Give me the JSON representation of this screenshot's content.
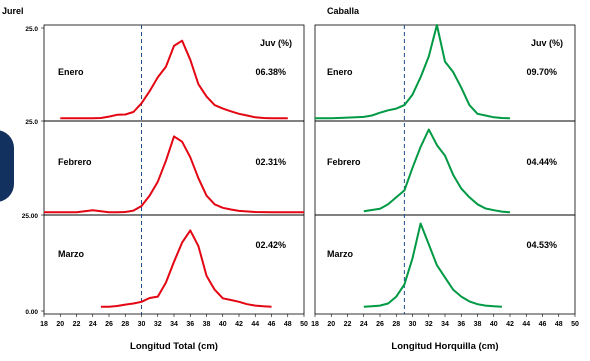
{
  "page": {
    "top_left_title": "Jurel",
    "top_right_title": "Caballa"
  },
  "colors": {
    "jurel_line": "#e30613",
    "caballa_line": "#009944",
    "cutoff_line": "#1f4e8c",
    "frame": "#000000",
    "disc": "#12315e"
  },
  "chart_data": [
    {
      "type": "line",
      "species": "Jurel",
      "xlabel": "Longitud Total (cm)",
      "ylabel": "",
      "x_ticks": [
        18,
        20,
        22,
        24,
        26,
        28,
        30,
        32,
        34,
        36,
        38,
        40,
        42,
        44,
        46,
        48,
        50
      ],
      "xlim": [
        18,
        50
      ],
      "ylim": [
        0,
        25
      ],
      "y_tick_labels": [
        "25.0",
        "25.0",
        "25.00",
        "0.00"
      ],
      "cutoff_cm": 30,
      "header_label": "Juv (%)",
      "grid": false,
      "panels": [
        {
          "month": "Enero",
          "juv_pct": "06.38%",
          "points": [
            [
              20,
              0.2
            ],
            [
              22,
              0.2
            ],
            [
              24,
              0.2
            ],
            [
              25,
              0.3
            ],
            [
              26,
              0.7
            ],
            [
              27,
              1.2
            ],
            [
              28,
              1.3
            ],
            [
              29,
              2.0
            ],
            [
              30,
              4.5
            ],
            [
              31,
              8.0
            ],
            [
              32,
              12.0
            ],
            [
              33,
              15.0
            ],
            [
              34,
              21.0
            ],
            [
              35,
              22.5
            ],
            [
              36,
              17.0
            ],
            [
              37,
              10.0
            ],
            [
              38,
              6.5
            ],
            [
              39,
              4.0
            ],
            [
              40,
              3.0
            ],
            [
              41,
              2.2
            ],
            [
              42,
              1.5
            ],
            [
              43,
              1.0
            ],
            [
              44,
              0.5
            ],
            [
              45,
              0.3
            ],
            [
              46,
              0.2
            ],
            [
              47,
              0.2
            ],
            [
              48,
              0.2
            ]
          ]
        },
        {
          "month": "Febrero",
          "juv_pct": "02.31%",
          "points": [
            [
              18,
              0.2
            ],
            [
              20,
              0.2
            ],
            [
              22,
              0.2
            ],
            [
              23,
              0.5
            ],
            [
              24,
              0.8
            ],
            [
              25,
              0.5
            ],
            [
              26,
              0.2
            ],
            [
              27,
              0.2
            ],
            [
              28,
              0.3
            ],
            [
              29,
              0.7
            ],
            [
              30,
              2.0
            ],
            [
              31,
              5.0
            ],
            [
              32,
              9.0
            ],
            [
              33,
              15.0
            ],
            [
              34,
              22.0
            ],
            [
              35,
              20.5
            ],
            [
              36,
              16.0
            ],
            [
              37,
              10.0
            ],
            [
              38,
              5.0
            ],
            [
              39,
              2.5
            ],
            [
              40,
              1.5
            ],
            [
              41,
              1.0
            ],
            [
              42,
              0.6
            ],
            [
              44,
              0.3
            ],
            [
              46,
              0.2
            ],
            [
              50,
              0.2
            ]
          ]
        },
        {
          "month": "Marzo",
          "juv_pct": "02.42%",
          "points": [
            [
              25,
              0.1
            ],
            [
              26,
              0.1
            ],
            [
              27,
              0.3
            ],
            [
              28,
              0.7
            ],
            [
              29,
              1.0
            ],
            [
              30,
              1.5
            ],
            [
              31,
              2.6
            ],
            [
              32,
              3.0
            ],
            [
              33,
              7.0
            ],
            [
              34,
              13.0
            ],
            [
              35,
              18.5
            ],
            [
              36,
              22.0
            ],
            [
              37,
              17.5
            ],
            [
              38,
              9.0
            ],
            [
              39,
              5.0
            ],
            [
              40,
              2.5
            ],
            [
              41,
              2.0
            ],
            [
              42,
              1.5
            ],
            [
              43,
              0.8
            ],
            [
              44,
              0.4
            ],
            [
              45,
              0.2
            ],
            [
              46,
              0.1
            ]
          ]
        }
      ]
    },
    {
      "type": "line",
      "species": "Caballa",
      "xlabel": "Longitud Horquilla (cm)",
      "ylabel": "",
      "x_ticks": [
        18,
        20,
        22,
        24,
        26,
        28,
        30,
        32,
        34,
        36,
        38,
        40,
        42,
        44,
        46,
        48,
        50
      ],
      "xlim": [
        18,
        50
      ],
      "ylim": [
        0,
        25
      ],
      "cutoff_cm": 29,
      "header_label": "Juv (%)",
      "grid": false,
      "panels": [
        {
          "month": "Enero",
          "juv_pct": "09.70%",
          "points": [
            [
              18,
              0.2
            ],
            [
              20,
              0.2
            ],
            [
              22,
              0.4
            ],
            [
              24,
              0.6
            ],
            [
              25,
              1.0
            ],
            [
              26,
              1.8
            ],
            [
              27,
              2.5
            ],
            [
              28,
              3.0
            ],
            [
              29,
              4.0
            ],
            [
              30,
              7.0
            ],
            [
              31,
              12.0
            ],
            [
              32,
              18.0
            ],
            [
              33,
              27.0
            ],
            [
              34,
              16.5
            ],
            [
              35,
              13.5
            ],
            [
              36,
              9.0
            ],
            [
              37,
              4.0
            ],
            [
              38,
              1.5
            ],
            [
              39,
              1.0
            ],
            [
              40,
              0.5
            ],
            [
              41,
              0.3
            ],
            [
              42,
              0.2
            ]
          ]
        },
        {
          "month": "Febrero",
          "juv_pct": "04.44%",
          "points": [
            [
              24,
              0.5
            ],
            [
              26,
              1.2
            ],
            [
              27,
              2.5
            ],
            [
              28,
              4.5
            ],
            [
              29,
              6.5
            ],
            [
              30,
              13.0
            ],
            [
              31,
              19.0
            ],
            [
              32,
              24.0
            ],
            [
              33,
              19.5
            ],
            [
              34,
              16.5
            ],
            [
              35,
              11.0
            ],
            [
              36,
              7.0
            ],
            [
              37,
              4.5
            ],
            [
              38,
              2.5
            ],
            [
              39,
              1.3
            ],
            [
              40,
              0.8
            ],
            [
              41,
              0.4
            ],
            [
              42,
              0.2
            ]
          ]
        },
        {
          "month": "Marzo",
          "juv_pct": "04.53%",
          "points": [
            [
              24,
              0.1
            ],
            [
              25,
              0.2
            ],
            [
              26,
              0.4
            ],
            [
              27,
              1.0
            ],
            [
              28,
              3.0
            ],
            [
              29,
              6.5
            ],
            [
              30,
              14.0
            ],
            [
              31,
              24.0
            ],
            [
              32,
              18.0
            ],
            [
              33,
              12.0
            ],
            [
              34,
              8.5
            ],
            [
              35,
              5.0
            ],
            [
              36,
              3.0
            ],
            [
              37,
              1.6
            ],
            [
              38,
              0.8
            ],
            [
              39,
              0.4
            ],
            [
              40,
              0.2
            ],
            [
              41,
              0.1
            ]
          ]
        }
      ]
    }
  ]
}
